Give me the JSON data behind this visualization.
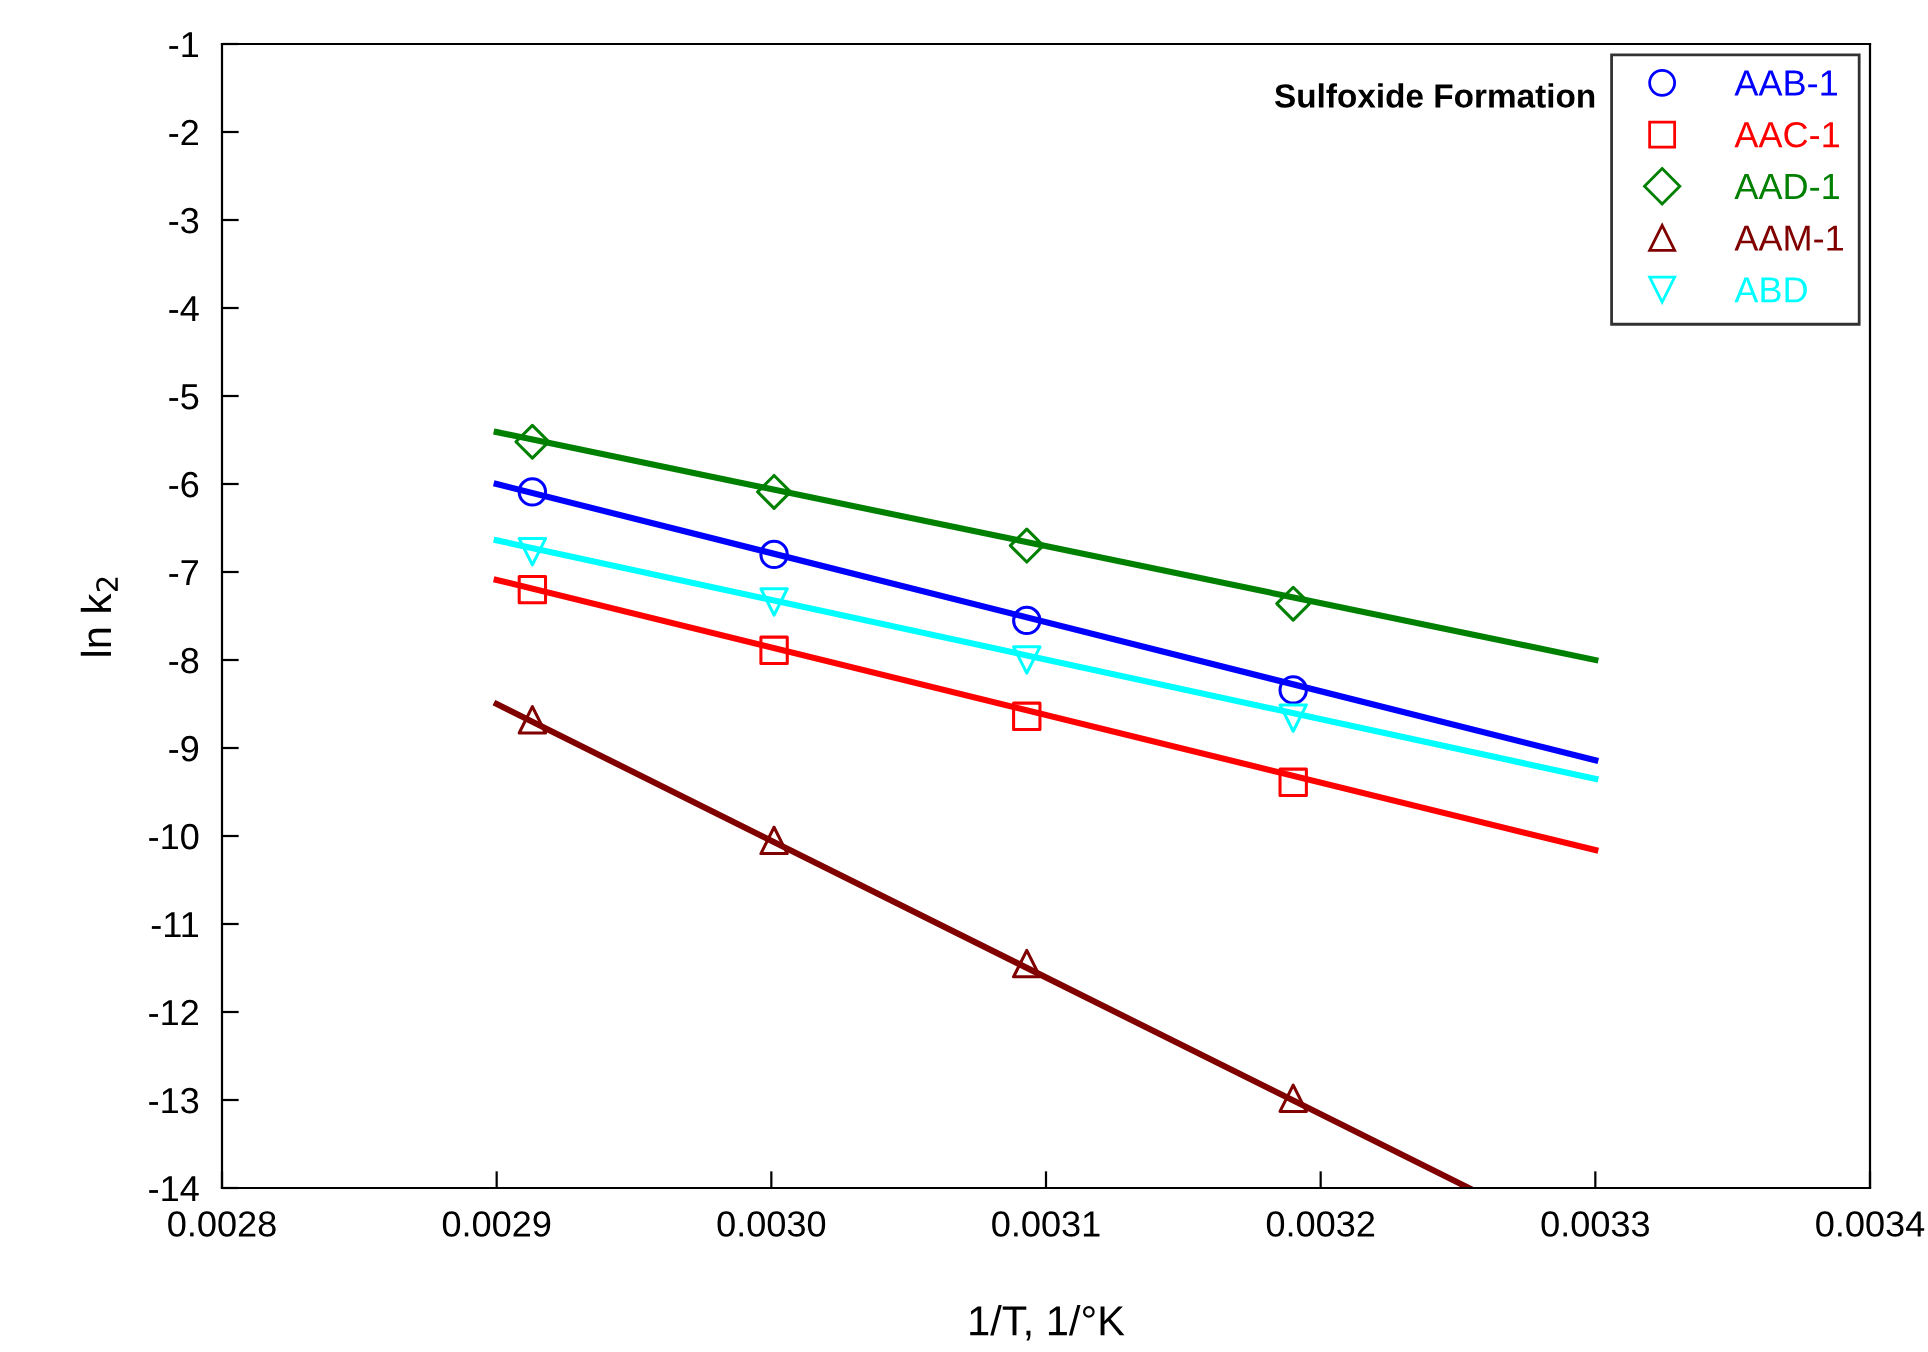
{
  "chart_data": {
    "type": "scatter",
    "xlabel": "1/T, 1/°K",
    "ylabel": "ln k$_{2}$",
    "legend_title": "Sulfoxide Formation",
    "legend": "top right",
    "grid": false,
    "xlim": [
      0.0028,
      0.0034
    ],
    "xticks": [
      {
        "value": 0.0028,
        "label": "0.0028"
      },
      {
        "value": 0.0029,
        "label": "0.0029"
      },
      {
        "value": 0.003,
        "label": "0.0030"
      },
      {
        "value": 0.0031,
        "label": "0.0031"
      },
      {
        "value": 0.0032,
        "label": "0.0032"
      },
      {
        "value": 0.0033,
        "label": "0.0033"
      },
      {
        "value": 0.0034,
        "label": "0.0034"
      }
    ],
    "ylim": [
      -14,
      -1
    ],
    "yticks": [
      -14,
      -13,
      -12,
      -11,
      -10,
      -9,
      -8,
      -7,
      -6,
      -5,
      -4,
      -3,
      -2,
      -1
    ],
    "series": [
      {
        "name": "AAB-1",
        "marker": "circle",
        "color": "#0000ff",
        "x": [
          0.002913,
          0.003001,
          0.003093,
          0.00319
        ],
        "values": [
          -6.09,
          -6.8,
          -7.55,
          -8.34
        ]
      },
      {
        "name": "AAC-1",
        "marker": "square",
        "color": "#ff0000",
        "x": [
          0.002913,
          0.003001,
          0.003093,
          0.00319
        ],
        "values": [
          -7.2,
          -7.89,
          -8.64,
          -9.39
        ]
      },
      {
        "name": "AAD-1",
        "marker": "diamond",
        "color": "#008000",
        "x": [
          0.002913,
          0.003001,
          0.003093,
          0.00319
        ],
        "values": [
          -5.52,
          -6.09,
          -6.7,
          -7.36
        ]
      },
      {
        "name": "AAM-1",
        "marker": "triangle",
        "color": "#800000",
        "x": [
          0.002913,
          0.003001,
          0.003093,
          0.00319
        ],
        "values": [
          -8.68,
          -10.05,
          -11.45,
          -12.98
        ]
      },
      {
        "name": "ABD",
        "marker": "triangle_down",
        "color": "#00ffff",
        "x": [
          0.002913,
          0.003001,
          0.003093,
          0.00319
        ],
        "values": [
          -6.77,
          -7.34,
          -8.0,
          -8.66
        ]
      },
      {
        "type": "line",
        "color": "#0000ff",
        "x": [
          0.0029,
          0.0033
        ],
        "values": [
          -6.0,
          -9.14
        ]
      },
      {
        "type": "line",
        "color": "#ff0000",
        "x": [
          0.0029,
          0.0033
        ],
        "values": [
          -7.09,
          -10.16
        ]
      },
      {
        "type": "line",
        "color": "#008000",
        "x": [
          0.0029,
          0.0033
        ],
        "values": [
          -5.41,
          -8.0
        ]
      },
      {
        "type": "line",
        "color": "#800000",
        "x": [
          0.0029,
          0.003254
        ],
        "values": [
          -8.5,
          -14.0
        ]
      },
      {
        "type": "line",
        "color": "#00ffff",
        "x": [
          0.0029,
          0.0033
        ],
        "values": [
          -6.64,
          -9.35
        ]
      }
    ]
  }
}
